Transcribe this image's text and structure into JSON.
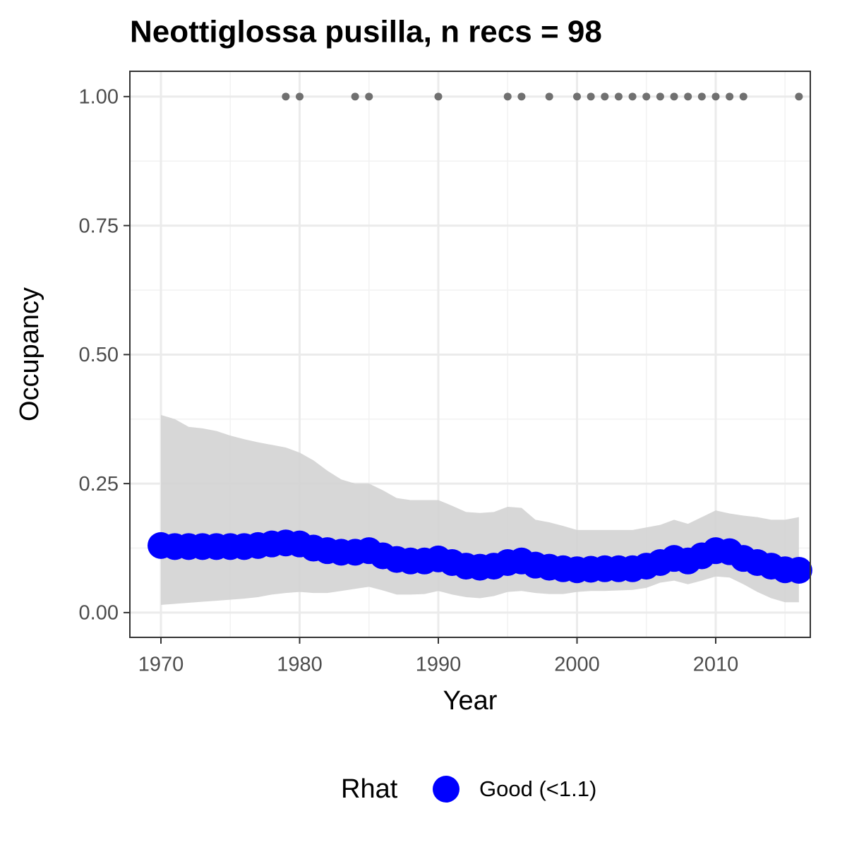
{
  "chart_data": {
    "type": "line",
    "title": "Neottiglossa pusilla, n recs = 98",
    "xlabel": "Year",
    "ylabel": "Occupancy",
    "legend_title": "Rhat",
    "x": [
      1970,
      1971,
      1972,
      1973,
      1974,
      1975,
      1976,
      1977,
      1978,
      1979,
      1980,
      1981,
      1982,
      1983,
      1984,
      1985,
      1986,
      1987,
      1988,
      1989,
      1990,
      1991,
      1992,
      1993,
      1994,
      1995,
      1996,
      1997,
      1998,
      1999,
      2000,
      2001,
      2002,
      2003,
      2004,
      2005,
      2006,
      2007,
      2008,
      2009,
      2010,
      2011,
      2012,
      2013,
      2014,
      2015,
      2016
    ],
    "series": [
      {
        "name": "Good (<1.1)",
        "color": "#0000ff",
        "values": [
          0.13,
          0.128,
          0.128,
          0.128,
          0.128,
          0.128,
          0.128,
          0.13,
          0.133,
          0.135,
          0.133,
          0.125,
          0.12,
          0.117,
          0.117,
          0.12,
          0.11,
          0.103,
          0.1,
          0.1,
          0.104,
          0.097,
          0.09,
          0.088,
          0.09,
          0.097,
          0.1,
          0.092,
          0.088,
          0.085,
          0.083,
          0.084,
          0.085,
          0.085,
          0.085,
          0.09,
          0.097,
          0.105,
          0.1,
          0.11,
          0.12,
          0.118,
          0.105,
          0.097,
          0.09,
          0.083,
          0.082
        ]
      }
    ],
    "band": {
      "color": "#d3d3d3",
      "lower": [
        0.015,
        0.017,
        0.019,
        0.021,
        0.023,
        0.025,
        0.027,
        0.03,
        0.035,
        0.038,
        0.04,
        0.038,
        0.038,
        0.042,
        0.046,
        0.05,
        0.043,
        0.035,
        0.035,
        0.036,
        0.042,
        0.035,
        0.03,
        0.028,
        0.032,
        0.04,
        0.042,
        0.038,
        0.036,
        0.036,
        0.04,
        0.042,
        0.042,
        0.043,
        0.044,
        0.048,
        0.058,
        0.062,
        0.055,
        0.062,
        0.07,
        0.068,
        0.055,
        0.04,
        0.028,
        0.02,
        0.02
      ],
      "upper": [
        0.383,
        0.375,
        0.36,
        0.357,
        0.352,
        0.343,
        0.336,
        0.33,
        0.325,
        0.32,
        0.31,
        0.295,
        0.275,
        0.258,
        0.25,
        0.25,
        0.237,
        0.222,
        0.218,
        0.218,
        0.218,
        0.207,
        0.195,
        0.193,
        0.195,
        0.205,
        0.203,
        0.18,
        0.175,
        0.168,
        0.16,
        0.16,
        0.16,
        0.16,
        0.16,
        0.165,
        0.17,
        0.18,
        0.172,
        0.185,
        0.198,
        0.192,
        0.188,
        0.185,
        0.18,
        0.18,
        0.185
      ]
    },
    "records": {
      "color": "#707070",
      "x": [
        1979,
        1980,
        1984,
        1985,
        1990,
        1995,
        1996,
        1998,
        2000,
        2001,
        2002,
        2003,
        2004,
        2005,
        2006,
        2007,
        2008,
        2009,
        2010,
        2011,
        2012,
        2016
      ],
      "values": [
        1,
        1,
        1,
        1,
        1,
        1,
        1,
        1,
        1,
        1,
        1,
        1,
        1,
        1,
        1,
        1,
        1,
        1,
        1,
        1,
        1,
        1
      ]
    },
    "xlim": [
      1967.76,
      2016.82
    ],
    "ylim": [
      -0.048,
      1.049
    ],
    "xticks": [
      1970,
      1980,
      1990,
      2000,
      2010
    ],
    "x_minor_ticks": [
      1975,
      1985,
      1995,
      2005,
      2015
    ],
    "yticks": [
      {
        "value": 0,
        "label": "0.00"
      },
      {
        "value": 0.25,
        "label": "0.25"
      },
      {
        "value": 0.5,
        "label": "0.50"
      },
      {
        "value": 0.75,
        "label": "0.75"
      },
      {
        "value": 1,
        "label": "1.00"
      }
    ],
    "y_minor_ticks": [
      0.125,
      0.375,
      0.625,
      0.875
    ],
    "grid": true,
    "legend": "bottom"
  }
}
